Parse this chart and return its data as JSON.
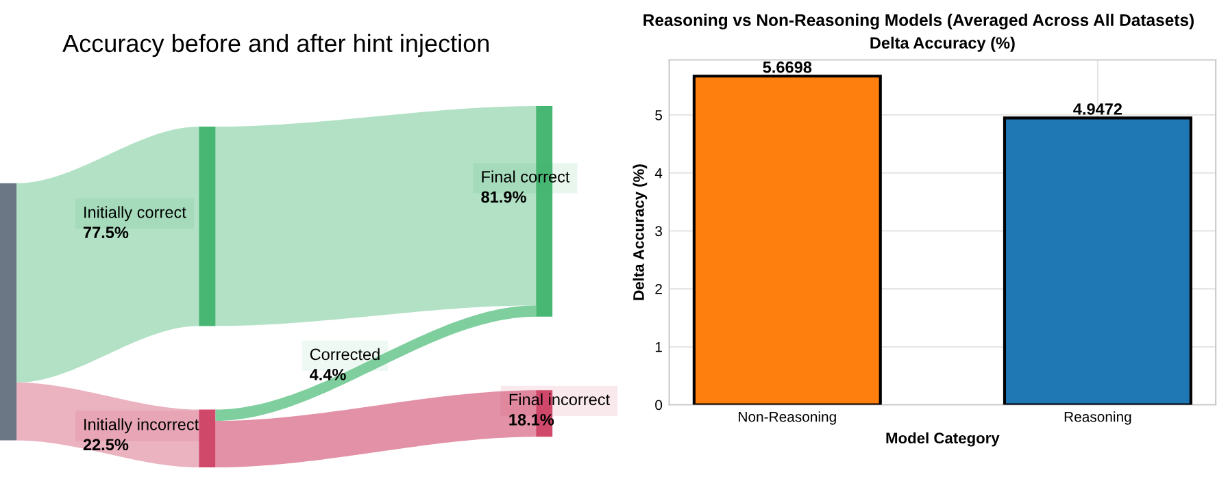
{
  "chart_data": [
    {
      "type": "other",
      "title": "Accuracy before and after hint injection",
      "categories": [
        "Initially correct",
        "Initially incorrect",
        "Corrected",
        "Final correct",
        "Final incorrect"
      ],
      "values": [
        77.5,
        22.5,
        4.4,
        81.9,
        18.1
      ],
      "value_labels": [
        "77.5%",
        "22.5%",
        "4.4%",
        "81.9%",
        "18.1%"
      ],
      "colors": [
        "#48b774",
        "#d0486a",
        "#7fcf9e",
        "#48b774",
        "#d0486a"
      ]
    },
    {
      "type": "bar",
      "title": "Reasoning vs Non-Reasoning Models (Averaged Across All Datasets)",
      "subtitle": "Delta Accuracy (%)",
      "xlabel": "Model Category",
      "ylabel": "Delta Accuracy (%)",
      "categories": [
        "Non-Reasoning",
        "Reasoning"
      ],
      "values": [
        5.6698,
        4.9472
      ],
      "colors": [
        "#ff7f0e",
        "#1f77b4"
      ],
      "ylim": [
        0,
        5.95
      ],
      "yticks": [
        0,
        1,
        2,
        3,
        4,
        5
      ],
      "grid": true,
      "data_labels": true
    }
  ]
}
